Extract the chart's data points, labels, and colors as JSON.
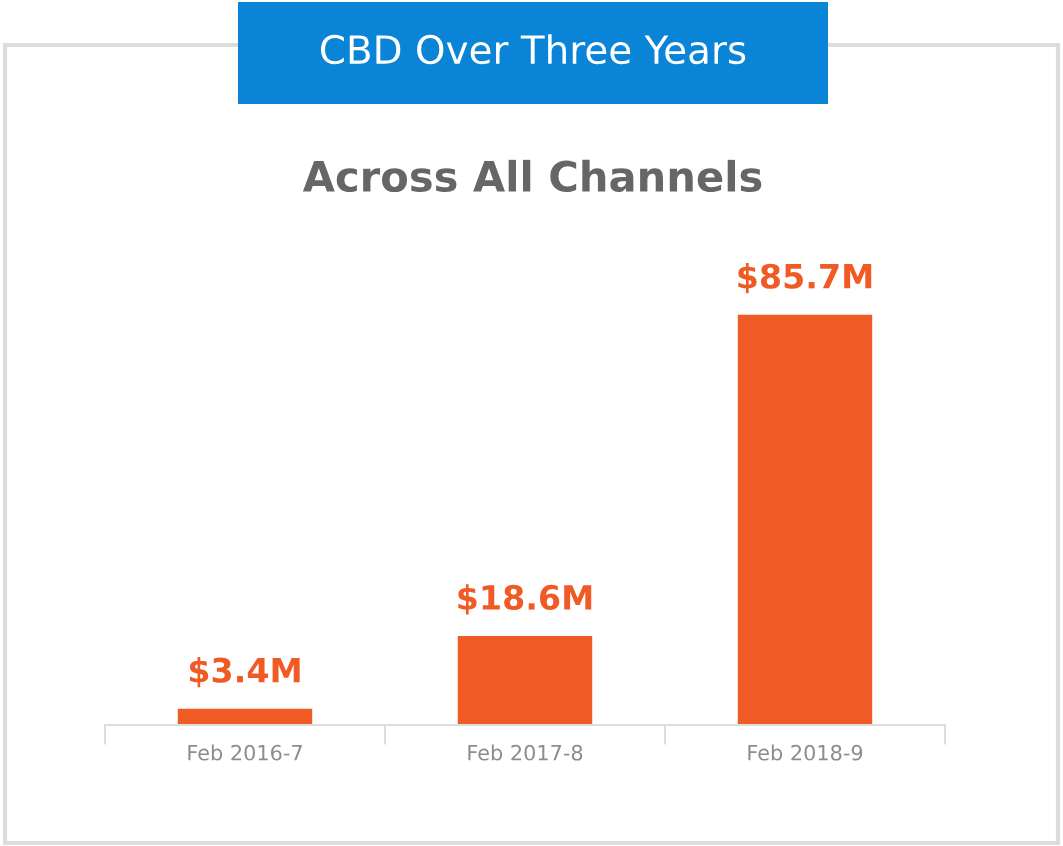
{
  "chart_data": {
    "type": "bar",
    "title": "CBD Over Three Years",
    "subtitle": "Across All Channels",
    "categories": [
      "Feb 2016-7",
      "Feb 2017-8",
      "Feb 2018-9"
    ],
    "values": [
      3.4,
      18.6,
      85.7
    ],
    "color": "#f05a24",
    "value_labels": [
      "$3.4M",
      "$18.6M",
      "$85.7M"
    ]
  }
}
